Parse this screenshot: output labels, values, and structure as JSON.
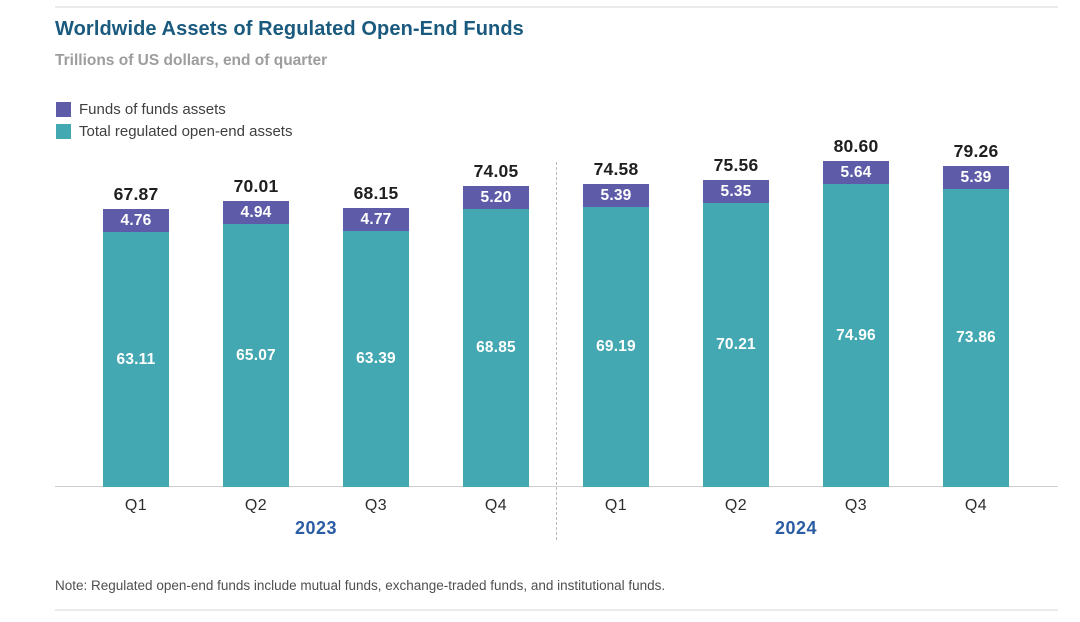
{
  "header": {
    "title": "Worldwide Assets of Regulated Open-End Funds",
    "subtitle": "Trillions of US dollars, end of quarter"
  },
  "legend": [
    {
      "label": "Funds of funds assets",
      "color": "#5e5ca8"
    },
    {
      "label": "Total regulated open-end assets",
      "color": "#43a8b1"
    }
  ],
  "chart_data": {
    "type": "bar",
    "stacked": true,
    "title": "Worldwide Assets of Regulated Open-End Funds",
    "ylabel": "Trillions of US dollars, end of quarter",
    "xlabel": "",
    "grid": false,
    "legend_position": "top-left",
    "ylim": [
      0,
      85
    ],
    "groups": [
      {
        "year": "2023",
        "categories": [
          "Q1",
          "Q2",
          "Q3",
          "Q4"
        ]
      },
      {
        "year": "2024",
        "categories": [
          "Q1",
          "Q2",
          "Q3",
          "Q4"
        ]
      }
    ],
    "categories": [
      "Q1 2023",
      "Q2 2023",
      "Q3 2023",
      "Q4 2023",
      "Q1 2024",
      "Q2 2024",
      "Q3 2024",
      "Q4 2024"
    ],
    "series": [
      {
        "name": "Total regulated open-end assets",
        "color": "#43a8b1",
        "values": [
          63.11,
          65.07,
          63.39,
          68.85,
          69.19,
          70.21,
          74.96,
          73.86
        ]
      },
      {
        "name": "Funds of funds assets",
        "color": "#5e5ca8",
        "values": [
          4.76,
          4.94,
          4.77,
          5.2,
          5.39,
          5.35,
          5.64,
          5.39
        ]
      }
    ],
    "totals": [
      67.87,
      70.01,
      68.15,
      74.05,
      74.58,
      75.56,
      80.6,
      79.26
    ]
  },
  "note": "Note: Regulated open-end funds include mutual funds, exchange-traded funds, and institutional funds.",
  "colors": {
    "title": "#1a5a7e",
    "subtitle": "#9d9d9d",
    "year_label": "#2a5da4",
    "total_label": "#1f1f1f",
    "purple": "#5e5ca8",
    "teal": "#43a8b1"
  }
}
